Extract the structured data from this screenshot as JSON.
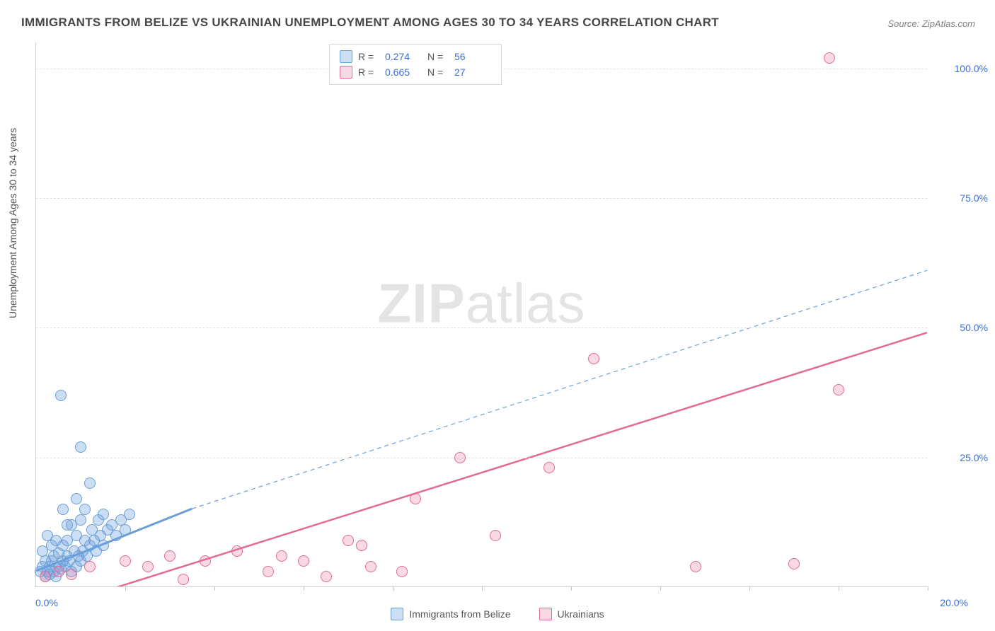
{
  "title": "IMMIGRANTS FROM BELIZE VS UKRAINIAN UNEMPLOYMENT AMONG AGES 30 TO 34 YEARS CORRELATION CHART",
  "source": "Source: ZipAtlas.com",
  "yaxis_label": "Unemployment Among Ages 30 to 34 years",
  "watermark_zip": "ZIP",
  "watermark_atlas": "atlas",
  "chart": {
    "type": "scatter",
    "background_color": "#ffffff",
    "grid_color": "#e0e0e0",
    "axis_color": "#d0d0d0",
    "tick_label_color": "#3a6fd8",
    "title_fontsize": 17,
    "label_fontsize": 14,
    "xlim": [
      0,
      20
    ],
    "ylim": [
      0,
      105
    ],
    "yticks": [
      25,
      50,
      75,
      100
    ],
    "ytick_labels": [
      "25.0%",
      "50.0%",
      "75.0%",
      "100.0%"
    ],
    "xticks": [
      2,
      4,
      6,
      8,
      10,
      12,
      14,
      16,
      18,
      20
    ],
    "x_zero_label": "0.0%",
    "x_max_label": "20.0%",
    "marker_radius": 8,
    "marker_border_width": 1,
    "series": [
      {
        "name": "Immigrants from Belize",
        "R": "0.274",
        "N": "56",
        "fill": "rgba(110,160,220,0.35)",
        "stroke": "#6a9ed8",
        "points": [
          [
            0.1,
            3
          ],
          [
            0.15,
            4
          ],
          [
            0.2,
            2
          ],
          [
            0.2,
            5
          ],
          [
            0.25,
            3
          ],
          [
            0.3,
            2.5
          ],
          [
            0.3,
            4
          ],
          [
            0.35,
            5
          ],
          [
            0.4,
            3
          ],
          [
            0.4,
            6
          ],
          [
            0.45,
            2
          ],
          [
            0.5,
            4
          ],
          [
            0.5,
            6.5
          ],
          [
            0.55,
            3.5
          ],
          [
            0.6,
            5
          ],
          [
            0.6,
            8
          ],
          [
            0.65,
            4
          ],
          [
            0.7,
            6
          ],
          [
            0.7,
            9
          ],
          [
            0.75,
            5
          ],
          [
            0.8,
            3
          ],
          [
            0.8,
            12
          ],
          [
            0.85,
            7
          ],
          [
            0.9,
            4
          ],
          [
            0.9,
            10
          ],
          [
            0.95,
            6
          ],
          [
            1.0,
            5
          ],
          [
            1.0,
            13
          ],
          [
            1.05,
            7
          ],
          [
            1.1,
            9
          ],
          [
            1.1,
            15
          ],
          [
            1.15,
            6
          ],
          [
            1.2,
            8
          ],
          [
            1.25,
            11
          ],
          [
            1.3,
            9
          ],
          [
            1.35,
            7
          ],
          [
            1.4,
            13
          ],
          [
            1.45,
            10
          ],
          [
            1.5,
            8
          ],
          [
            1.5,
            14
          ],
          [
            1.6,
            11
          ],
          [
            1.7,
            12
          ],
          [
            1.8,
            10
          ],
          [
            1.9,
            13
          ],
          [
            2.0,
            11
          ],
          [
            2.1,
            14
          ],
          [
            1.2,
            20
          ],
          [
            0.9,
            17
          ],
          [
            0.6,
            15
          ],
          [
            1.0,
            27
          ],
          [
            0.55,
            37
          ],
          [
            0.35,
            8
          ],
          [
            0.25,
            10
          ],
          [
            0.15,
            7
          ],
          [
            0.7,
            12
          ],
          [
            0.45,
            9
          ]
        ],
        "trend_solid": {
          "x1": 0,
          "y1": 3,
          "x2": 3.5,
          "y2": 15,
          "width": 3
        },
        "trend_dashed": {
          "x1": 3.5,
          "y1": 15,
          "x2": 20,
          "y2": 61,
          "width": 1.2,
          "dash": "6,5"
        }
      },
      {
        "name": "Ukrainians",
        "R": "0.665",
        "N": "27",
        "fill": "rgba(235,120,160,0.28)",
        "stroke": "#e26a94",
        "points": [
          [
            0.2,
            2
          ],
          [
            0.5,
            3
          ],
          [
            0.8,
            2.5
          ],
          [
            1.2,
            4
          ],
          [
            2.0,
            5
          ],
          [
            2.5,
            4
          ],
          [
            3.0,
            6
          ],
          [
            3.3,
            1.5
          ],
          [
            3.8,
            5
          ],
          [
            4.5,
            7
          ],
          [
            5.2,
            3
          ],
          [
            5.5,
            6
          ],
          [
            6.0,
            5
          ],
          [
            6.5,
            2
          ],
          [
            7.0,
            9
          ],
          [
            7.3,
            8
          ],
          [
            7.5,
            4
          ],
          [
            8.2,
            3
          ],
          [
            8.5,
            17
          ],
          [
            9.5,
            25
          ],
          [
            10.3,
            10
          ],
          [
            11.5,
            23
          ],
          [
            12.5,
            44
          ],
          [
            14.8,
            4
          ],
          [
            17.0,
            4.5
          ],
          [
            18.0,
            38
          ],
          [
            17.8,
            102
          ]
        ],
        "trend_solid": {
          "x1": 1.5,
          "y1": -1,
          "x2": 20,
          "y2": 49,
          "width": 2.5
        }
      }
    ]
  },
  "legend_top": {
    "r_label": "R =",
    "n_label": "N ="
  },
  "legend_bottom": [
    {
      "label": "Immigrants from Belize",
      "swatch_fill": "rgba(110,160,220,0.35)",
      "swatch_stroke": "#6a9ed8"
    },
    {
      "label": "Ukrainians",
      "swatch_fill": "rgba(235,120,160,0.28)",
      "swatch_stroke": "#e26a94"
    }
  ]
}
